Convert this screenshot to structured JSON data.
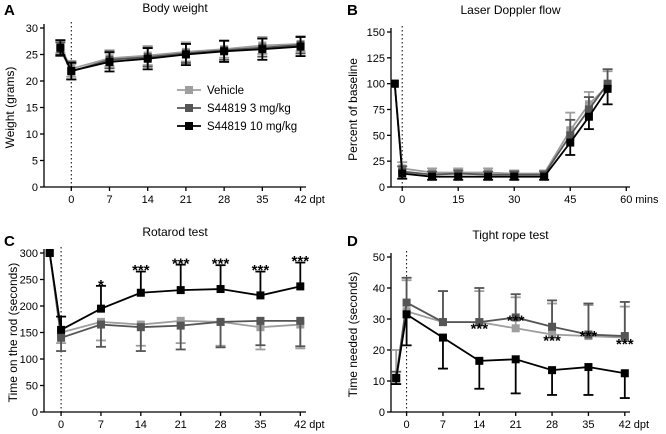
{
  "chart_data": [
    {
      "panel": "A",
      "type": "line",
      "title": "Body weight",
      "ylabel": "Weight (grams)",
      "xunit": "dpt",
      "ylim": [
        0,
        30
      ],
      "yticks": [
        0,
        5,
        10,
        15,
        20,
        25,
        30
      ],
      "xlim": [
        -5,
        43
      ],
      "xticks": [
        0,
        7,
        14,
        21,
        28,
        35,
        42
      ],
      "x": [
        -2,
        0,
        7,
        14,
        21,
        28,
        35,
        42
      ],
      "series": [
        {
          "name": "Vehicle",
          "color": "#9e9e9e",
          "marker": "square",
          "values": [
            26.5,
            22.3,
            24.3,
            24.8,
            25.5,
            26.0,
            26.7,
            27.0
          ],
          "err": [
            1.2,
            1.5,
            1.5,
            1.8,
            1.8,
            1.6,
            1.6,
            1.4
          ]
        },
        {
          "name": "S44819 3 mg/kg",
          "color": "#555555",
          "marker": "square",
          "values": [
            26.0,
            21.8,
            24.0,
            24.5,
            25.2,
            25.8,
            26.3,
            26.8
          ],
          "err": [
            1.3,
            1.5,
            1.6,
            1.8,
            1.8,
            1.8,
            1.7,
            1.6
          ]
        },
        {
          "name": "S44819 10 mg/kg",
          "color": "#000000",
          "marker": "square",
          "values": [
            26.3,
            21.9,
            23.6,
            24.2,
            25.0,
            25.6,
            26.0,
            26.5
          ],
          "err": [
            1.4,
            1.6,
            1.8,
            2.0,
            2.0,
            2.0,
            2.0,
            1.8
          ]
        }
      ],
      "legend_placement": "center-left"
    },
    {
      "panel": "B",
      "type": "line",
      "title": "Laser Doppler flow",
      "ylabel": "Percent of baseline",
      "xunit": "mins",
      "ylim": [
        0,
        150
      ],
      "yticks": [
        0,
        25,
        50,
        75,
        100,
        125,
        150
      ],
      "xlim": [
        -3,
        61
      ],
      "xticks": [
        0,
        15,
        30,
        45,
        60
      ],
      "series": [
        {
          "name": "Vehicle",
          "color": "#9e9e9e",
          "x": [
            -2,
            0,
            8,
            15,
            23,
            30,
            38,
            45,
            50,
            55
          ],
          "values": [
            100,
            18,
            14,
            14,
            14,
            13,
            13,
            55,
            80,
            98
          ],
          "err": [
            0,
            6,
            4,
            4,
            4,
            3,
            3,
            17,
            12,
            14
          ]
        },
        {
          "name": "S44819 3 mg/kg",
          "color": "#555555",
          "x": [
            -2,
            0,
            8,
            15,
            23,
            30,
            38,
            45,
            50,
            55
          ],
          "values": [
            100,
            15,
            12,
            13,
            12,
            12,
            12,
            50,
            75,
            100
          ],
          "err": [
            0,
            5,
            3,
            3,
            3,
            3,
            3,
            15,
            12,
            14
          ]
        },
        {
          "name": "S44819 10 mg/kg",
          "color": "#000000",
          "x": [
            -2,
            0,
            8,
            15,
            23,
            30,
            38,
            45,
            50,
            55
          ],
          "values": [
            100,
            13,
            10,
            10,
            10,
            10,
            10,
            43,
            68,
            95
          ],
          "err": [
            0,
            5,
            3,
            3,
            3,
            3,
            3,
            12,
            12,
            15
          ]
        }
      ]
    },
    {
      "panel": "C",
      "type": "line",
      "title": "Rotarod test",
      "ylabel": "Time on the rod (seconds)",
      "xunit": "dpt",
      "ylim": [
        0,
        300
      ],
      "yticks": [
        0,
        50,
        100,
        150,
        200,
        250,
        300
      ],
      "xlim": [
        -3,
        43
      ],
      "xticks": [
        0,
        7,
        14,
        21,
        28,
        35,
        42
      ],
      "x": [
        -2,
        0,
        7,
        14,
        21,
        28,
        35,
        42
      ],
      "series": [
        {
          "name": "Vehicle",
          "color": "#9e9e9e",
          "values": [
            300,
            150,
            170,
            165,
            172,
            170,
            160,
            165
          ],
          "err": [
            0,
            20,
            35,
            40,
            42,
            45,
            42,
            45
          ]
        },
        {
          "name": "S44819 3 mg/kg",
          "color": "#555555",
          "values": [
            300,
            140,
            165,
            160,
            163,
            170,
            172,
            172
          ],
          "err": [
            0,
            25,
            42,
            45,
            45,
            48,
            46,
            48
          ]
        },
        {
          "name": "S44819 10 mg/kg",
          "color": "#000000",
          "values": [
            300,
            155,
            195,
            225,
            230,
            232,
            220,
            237
          ],
          "err": [
            0,
            25,
            43,
            40,
            48,
            45,
            45,
            45
          ]
        }
      ],
      "annotations": [
        {
          "x": 7,
          "text": "*",
          "y": 240
        },
        {
          "x": 14,
          "text": "***",
          "y": 268
        },
        {
          "x": 21,
          "text": "***",
          "y": 280
        },
        {
          "x": 28,
          "text": "***",
          "y": 280
        },
        {
          "x": 35,
          "text": "***",
          "y": 268
        },
        {
          "x": 42,
          "text": "***",
          "y": 285
        }
      ]
    },
    {
      "panel": "D",
      "type": "line",
      "title": "Tight rope test",
      "ylabel": "Time needed (seconds)",
      "xunit": "dpt",
      "ylim": [
        0,
        50
      ],
      "yticks": [
        0,
        10,
        20,
        30,
        40,
        50
      ],
      "xlim": [
        -3,
        43
      ],
      "xticks": [
        0,
        7,
        14,
        21,
        28,
        35,
        42
      ],
      "x": [
        -2,
        0,
        7,
        14,
        21,
        28,
        35,
        42
      ],
      "series": [
        {
          "name": "Vehicle",
          "color": "#9e9e9e",
          "values": [
            10,
            32.5,
            29,
            29,
            27,
            25,
            24.5,
            24
          ],
          "err": [
            10,
            10,
            10,
            10,
            10,
            10,
            10,
            10
          ]
        },
        {
          "name": "S44819 3 mg/kg",
          "color": "#555555",
          "values": [
            11,
            35.3,
            29,
            29,
            30.5,
            27.5,
            25,
            24.5
          ],
          "err": [
            2,
            8,
            10,
            11,
            7.5,
            8.5,
            10,
            11
          ]
        },
        {
          "name": "S44819 10 mg/kg",
          "color": "#000000",
          "values": [
            11,
            31.5,
            24,
            16.5,
            17,
            13.5,
            14.5,
            12.5
          ],
          "err": [
            2,
            10,
            10,
            9,
            11,
            8,
            9,
            8
          ]
        }
      ],
      "annotations": [
        {
          "x": 14,
          "text": "***",
          "y": 27
        },
        {
          "x": 21,
          "text": "***",
          "y": 29.5
        },
        {
          "x": 28,
          "text": "***",
          "y": 23
        },
        {
          "x": 35,
          "text": "***",
          "y": 24.5
        },
        {
          "x": 42,
          "text": "***",
          "y": 22
        }
      ]
    }
  ]
}
